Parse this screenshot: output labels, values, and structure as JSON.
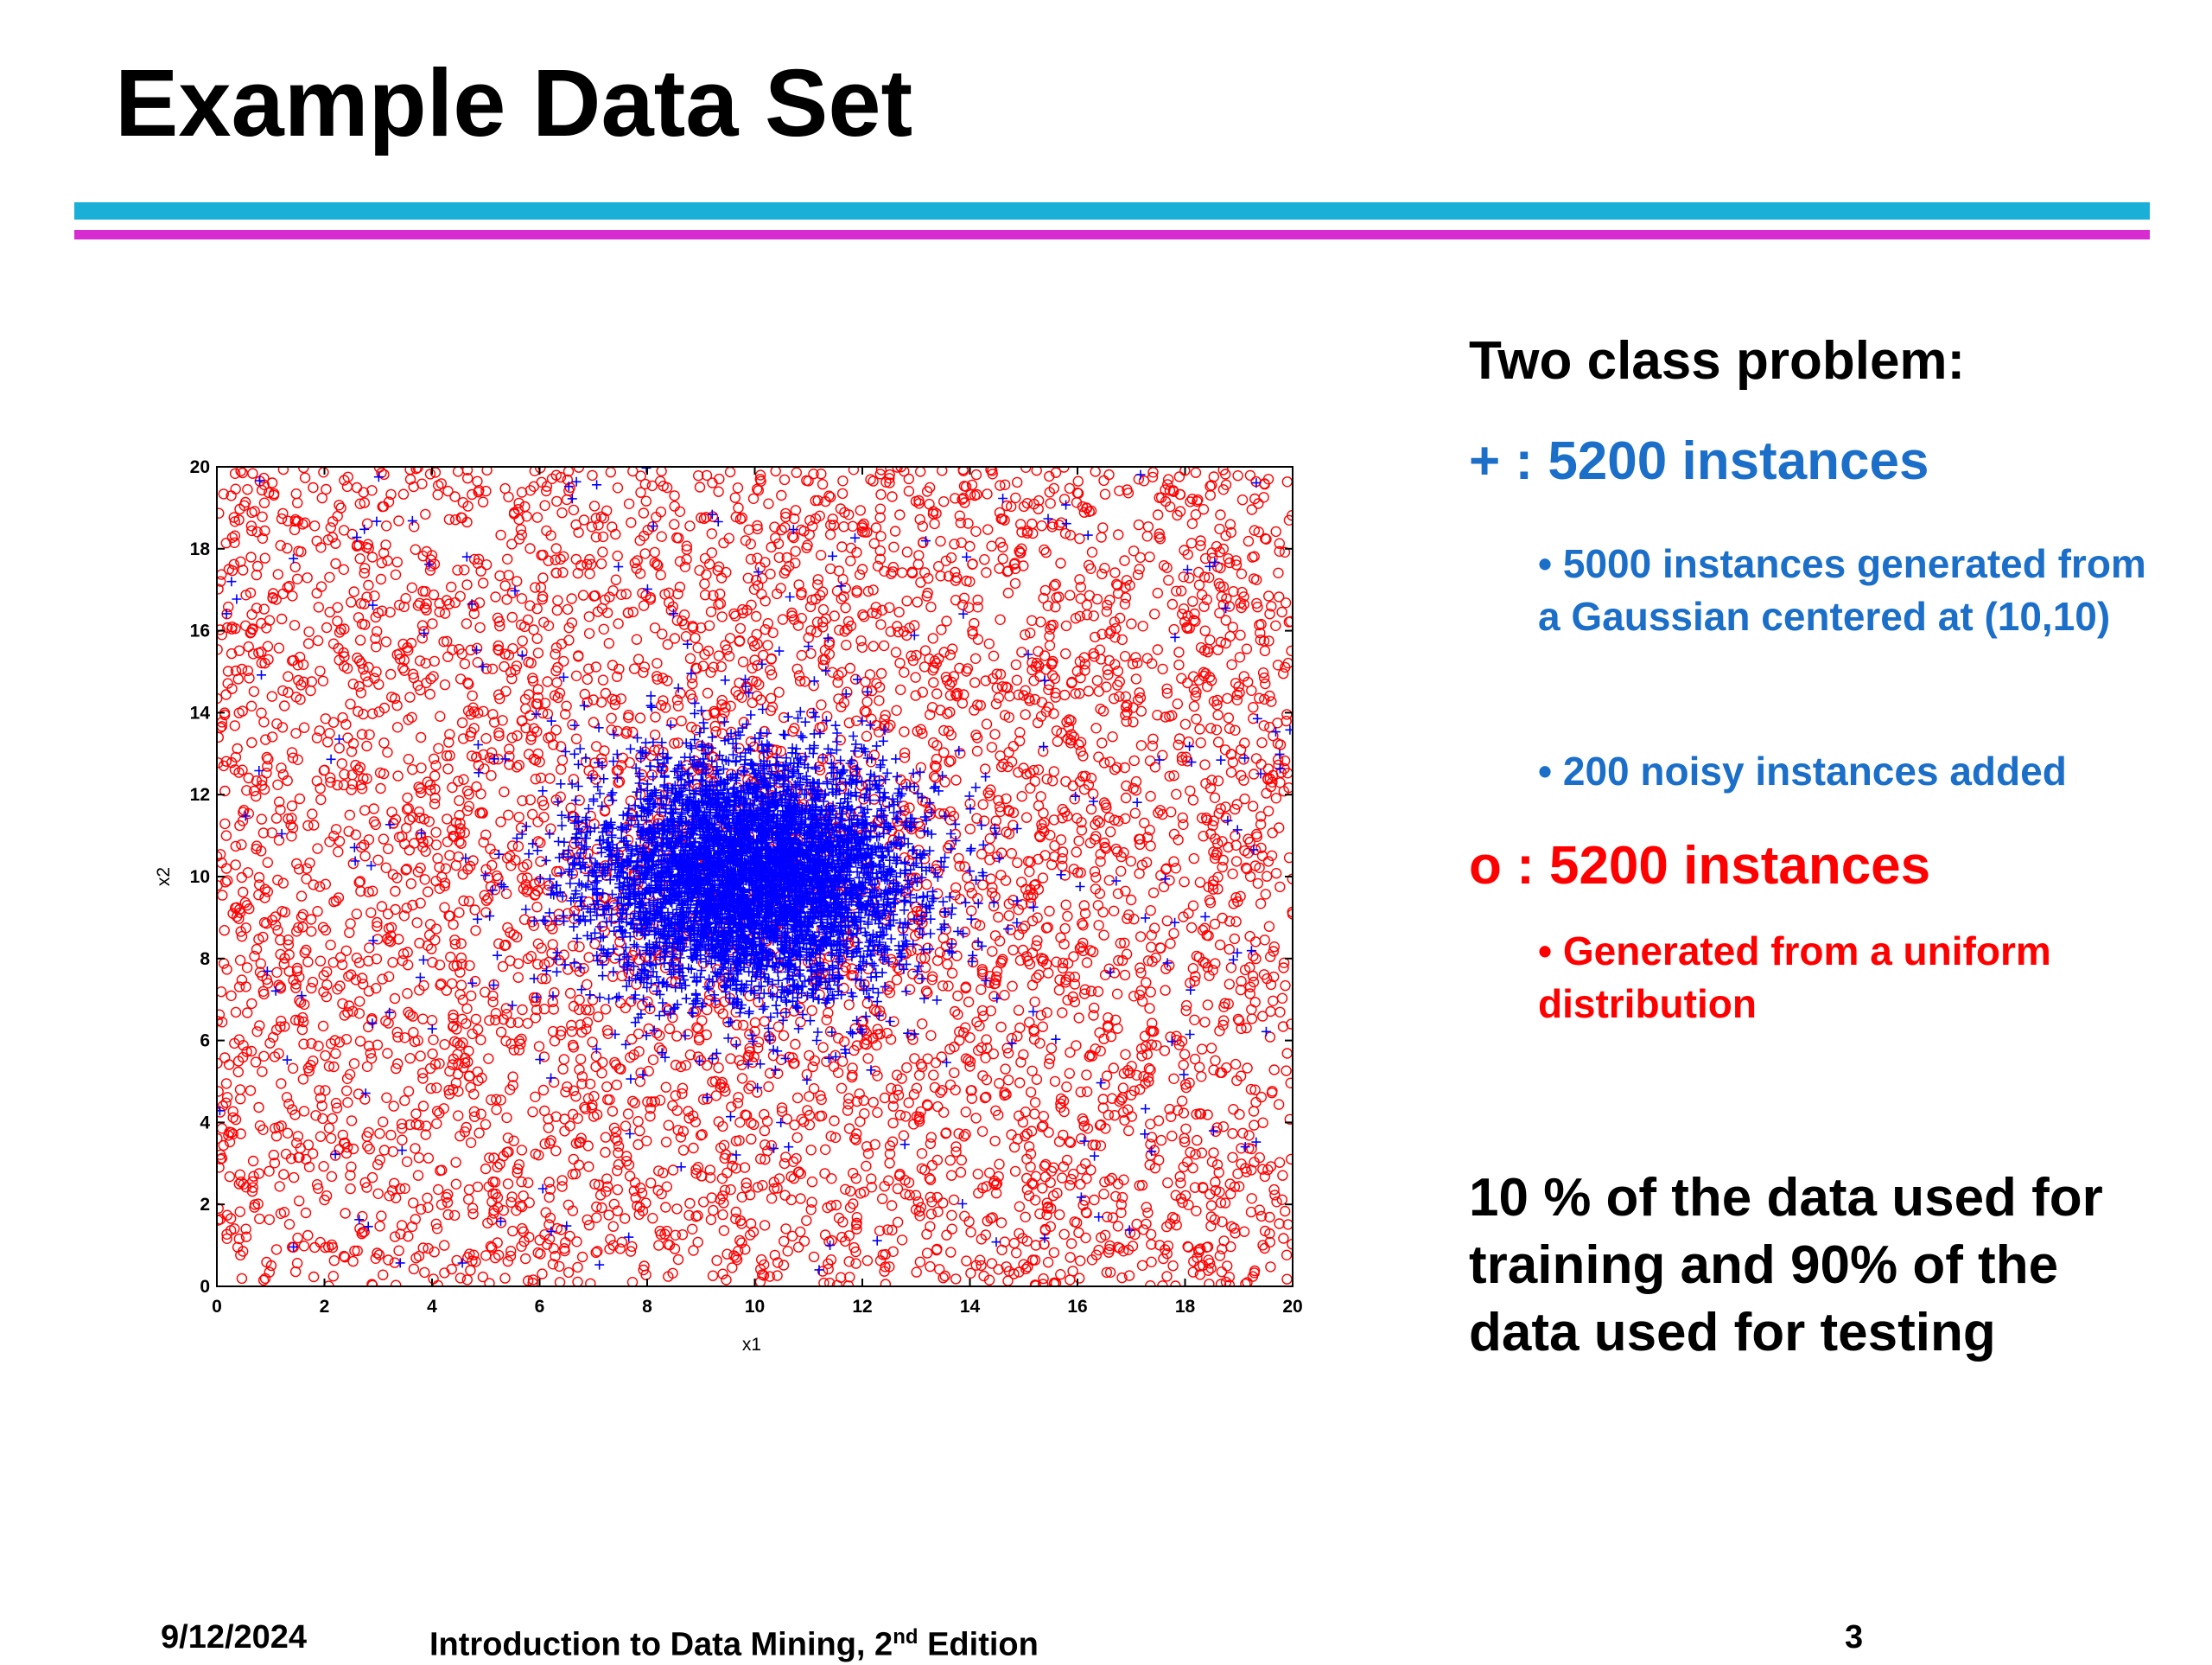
{
  "slide": {
    "title": "Example Data Set",
    "rule_colors": {
      "blue": "#1AAFD6",
      "magenta": "#D62CD2"
    }
  },
  "text": {
    "heading": "Two class problem:",
    "plus_symbol": "+",
    "plus_count": " : 5200 instances",
    "plus_bullet_1": "• 5000 instances generated from a Gaussian centered at (10,10)",
    "plus_bullet_2": "• 200 noisy instances added",
    "o_symbol": "o",
    "o_count": " : 5200 instances",
    "o_bullet_1": "• Generated from a uniform distribution",
    "note": "10 % of the data used for training and 90% of the data used for testing",
    "colors": {
      "plus_class": "#1B6FC8",
      "o_class": "#FF0000"
    }
  },
  "footer": {
    "date": "9/12/2024",
    "course_prefix": "Introduction to Data Mining, 2",
    "course_sup": "nd",
    "course_suffix": " Edition",
    "page": "3"
  },
  "chart_data": {
    "type": "scatter",
    "title": "",
    "xlabel": "x1",
    "ylabel": "x2",
    "xlim": [
      0,
      20
    ],
    "ylim": [
      0,
      20
    ],
    "xticks": [
      "0",
      "2",
      "4",
      "6",
      "8",
      "10",
      "12",
      "14",
      "16",
      "18",
      "20"
    ],
    "yticks": [
      "0",
      "2",
      "4",
      "6",
      "8",
      "10",
      "12",
      "14",
      "16",
      "18",
      "20"
    ],
    "grid": false,
    "legend": "none",
    "series": [
      {
        "marker": "circle",
        "color": "#FF0000",
        "count": 5200,
        "distribution": {
          "type": "uniform",
          "range": [
            [
              0,
              20
            ],
            [
              0,
              20
            ]
          ]
        }
      },
      {
        "marker": "plus",
        "color": "#0000FF",
        "count": 5200,
        "distribution": {
          "components": [
            {
              "type": "gaussian",
              "mean": [
                10,
                10
              ],
              "sd": [
                1.5,
                1.5
              ],
              "count": 5000
            },
            {
              "type": "uniform",
              "range": [
                [
                  0,
                  20
                ],
                [
                  0,
                  20
                ]
              ],
              "count": 200
            }
          ]
        }
      }
    ]
  }
}
